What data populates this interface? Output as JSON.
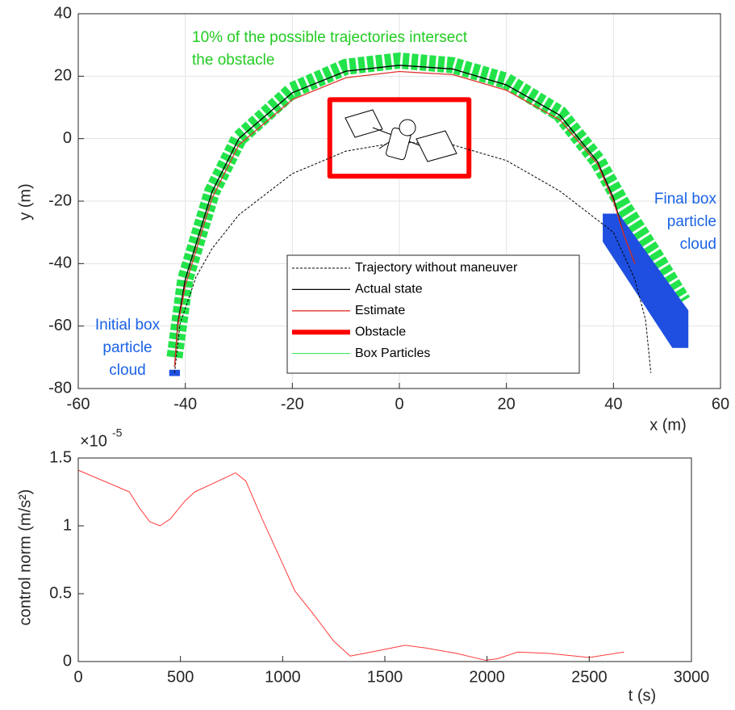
{
  "chart_data": [
    {
      "type": "line",
      "x_label": "x (m)",
      "y_label": "y (m)",
      "xlim": [
        -60,
        60
      ],
      "ylim": [
        -80,
        40
      ],
      "xticks": [
        -60,
        -40,
        -20,
        0,
        20,
        40,
        60
      ],
      "yticks": [
        -80,
        -60,
        -40,
        -20,
        0,
        20,
        40
      ],
      "grid": true,
      "legend": "lower right",
      "annotations": [
        {
          "text": [
            "10% of the possible trajectories intersect",
            "the obstacle"
          ],
          "color": "#22cc22"
        },
        {
          "text": [
            "Final box",
            "particle",
            "cloud"
          ],
          "color": "#1a62e6"
        },
        {
          "text": [
            "Initial box",
            "particle",
            "cloud"
          ],
          "color": "#1a62e6"
        }
      ],
      "series": [
        {
          "name": "Trajectory without maneuver",
          "color": "#000000",
          "linestyle": "dashed",
          "linewidth": 1,
          "x": [
            -42,
            -41,
            -38,
            -35,
            -30,
            -20,
            -10,
            0,
            10,
            20,
            30,
            40,
            44,
            46,
            47
          ],
          "values": [
            -75,
            -59.4,
            -44.3,
            -35.2,
            -24.4,
            -11.2,
            -4,
            -1.1,
            -2,
            -7,
            -16.8,
            -30,
            -45,
            -58,
            -75
          ]
        },
        {
          "name": "Actual state",
          "color": "#000000",
          "linestyle": "solid",
          "linewidth": 1.3,
          "x": [
            -42,
            -41.4,
            -40,
            -35,
            -30,
            -20,
            -10,
            0,
            10,
            20,
            30,
            37,
            40,
            42,
            44
          ],
          "values": [
            -73,
            -59,
            -45,
            -17,
            0,
            14.7,
            21.6,
            23.5,
            22.3,
            17.2,
            7.5,
            -7.3,
            -19,
            -31,
            -40
          ]
        },
        {
          "name": "Estimate",
          "color": "#e0332e",
          "linestyle": "solid",
          "linewidth": 1.3,
          "x": [
            -42,
            -41.4,
            -40,
            -35,
            -30,
            -20,
            -10,
            0,
            10,
            20,
            30,
            37,
            40,
            42,
            44
          ],
          "values": [
            -73,
            -60,
            -47,
            -19,
            -2,
            12.5,
            19.5,
            21.5,
            20.5,
            15.5,
            6,
            -8,
            -20,
            -31,
            -40
          ]
        },
        {
          "name": "Obstacle",
          "color": "#ff0000",
          "linestyle": "solid",
          "linewidth": 6,
          "fill": "#ffffff",
          "x": [
            -13,
            13,
            13,
            -13,
            -13
          ],
          "values": [
            12.5,
            12.5,
            -12,
            -12,
            12.5
          ]
        },
        {
          "name": "Box Particles",
          "color": "#22e34a",
          "linestyle": "boxes",
          "linewidth": 20,
          "x": [
            -42,
            -40,
            -35,
            -30,
            -20,
            -10,
            0,
            10,
            20,
            30,
            37,
            42,
            48,
            53
          ],
          "values": [
            -70,
            -45,
            -17,
            0,
            15.5,
            23,
            25,
            23.5,
            18.5,
            8,
            -7,
            -22,
            -38,
            -52
          ]
        },
        {
          "color": "#1f4fe0",
          "linestyle": "solid",
          "linewidth": 0,
          "fill": "#1f4fe0",
          "x": [
            -43,
            -41,
            -41,
            -43
          ],
          "values": [
            -74,
            -74,
            -76,
            -76
          ]
        },
        {
          "color": "#1f4fe0",
          "linestyle": "solid",
          "linewidth": 0,
          "fill": "#1f4fe0",
          "x": [
            38,
            41,
            54,
            54,
            51,
            38
          ],
          "values": [
            -24,
            -24,
            -55,
            -67,
            -67,
            -33
          ]
        }
      ]
    },
    {
      "type": "line",
      "x_label": "t (s)",
      "y_label": "control norm (m/s²)",
      "y_multiplier": {
        "base": "×10",
        "exponent": "-5"
      },
      "xlim": [
        0,
        3000
      ],
      "ylim": [
        0,
        1.5
      ],
      "xticks": [
        0,
        500,
        1000,
        1500,
        2000,
        2500,
        3000
      ],
      "yticks": [
        0,
        0.5,
        1,
        1.5
      ],
      "grid": false,
      "series": [
        {
          "color": "#ff3b3b",
          "linestyle": "solid",
          "linewidth": 1,
          "x": [
            0,
            250,
            300,
            350,
            400,
            450,
            520,
            570,
            770,
            820,
            900,
            1000,
            1060,
            1150,
            1250,
            1330,
            1400,
            1600,
            1700,
            1850,
            1990,
            2050,
            2150,
            2300,
            2500,
            2670
          ],
          "values": [
            1.41,
            1.25,
            1.13,
            1.03,
            1.0,
            1.05,
            1.18,
            1.25,
            1.39,
            1.33,
            1.05,
            0.72,
            0.52,
            0.35,
            0.15,
            0.04,
            0.06,
            0.12,
            0.1,
            0.06,
            0.01,
            0.02,
            0.07,
            0.06,
            0.03,
            0.07
          ]
        }
      ]
    }
  ]
}
